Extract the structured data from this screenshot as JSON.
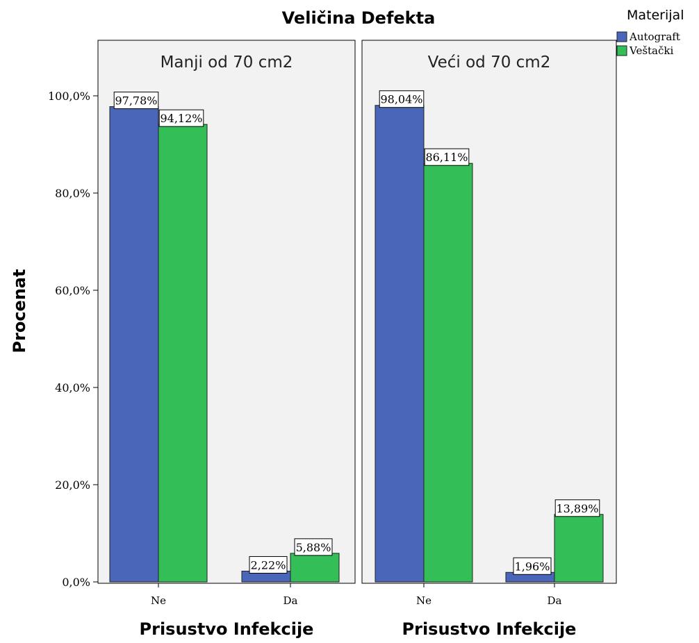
{
  "chart_data": {
    "type": "bar",
    "title": "Veličina Defekta",
    "ylabel": "Procenat",
    "ylim": [
      0,
      100
    ],
    "yticks": [
      "0,0%",
      "20,0%",
      "40,0%",
      "60,0%",
      "80,0%",
      "100,0%"
    ],
    "legend": {
      "title": "Materijal",
      "placement": "top-right",
      "entries": [
        {
          "name": "Autograft",
          "color": "#4a66b8"
        },
        {
          "name": "Veštački",
          "color": "#34be58"
        }
      ]
    },
    "panels": [
      {
        "title": "Manji od 70 cm2",
        "xlabel": "Prisustvo Infekcije",
        "categories": [
          "Ne",
          "Da"
        ],
        "series": [
          {
            "name": "Autograft",
            "values": [
              97.78,
              2.22
            ],
            "labels": [
              "97,78%",
              "2,22%"
            ]
          },
          {
            "name": "Veštački",
            "values": [
              94.12,
              5.88
            ],
            "labels": [
              "94,12%",
              "5,88%"
            ]
          }
        ]
      },
      {
        "title": "Veći od 70 cm2",
        "xlabel": "Prisustvo Infekcije",
        "categories": [
          "Ne",
          "Da"
        ],
        "series": [
          {
            "name": "Autograft",
            "values": [
              98.04,
              1.96
            ],
            "labels": [
              "98,04%",
              "1,96%"
            ]
          },
          {
            "name": "Veštački",
            "values": [
              86.11,
              13.89
            ],
            "labels": [
              "86,11%",
              "13,89%"
            ]
          }
        ]
      }
    ],
    "colors": {
      "panel_bg": "#f2f2f2",
      "bar_outline": "#222222"
    }
  }
}
